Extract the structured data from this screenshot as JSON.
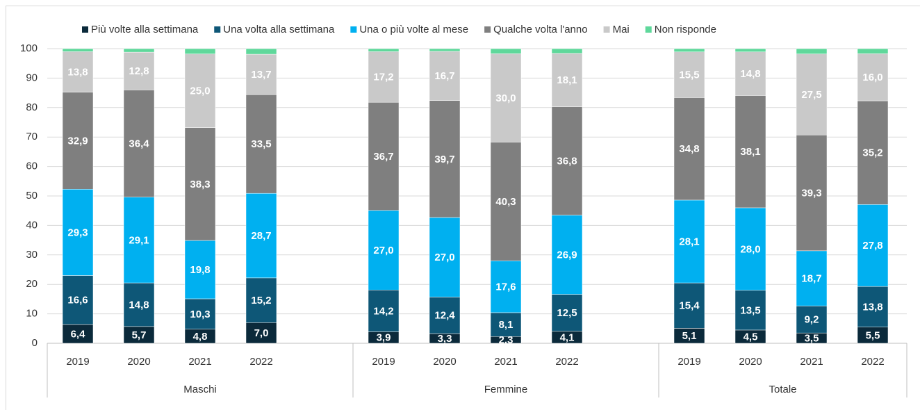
{
  "chart_data": {
    "type": "stacked_bar",
    "groups": [
      "Maschi",
      "Femmine",
      "Totale"
    ],
    "categories": [
      "2019",
      "2020",
      "2021",
      "2022",
      "2019",
      "2020",
      "2021",
      "2022",
      "2019",
      "2020",
      "2021",
      "2022"
    ],
    "series": [
      {
        "name": "Più volte alla settimana",
        "color": "#0b2a3b",
        "values": [
          6.4,
          5.7,
          4.8,
          7.0,
          3.9,
          3.3,
          2.3,
          4.1,
          5.1,
          4.5,
          3.5,
          5.5
        ],
        "value_labels": [
          "6,4",
          "5,7",
          "4,8",
          "7,0",
          "3,9",
          "3,3",
          "2,3",
          "4,1",
          "5,1",
          "4,5",
          "3,5",
          "5,5"
        ]
      },
      {
        "name": "Una volta alla settimana",
        "color": "#0e5777",
        "values": [
          16.6,
          14.8,
          10.3,
          15.2,
          14.2,
          12.4,
          8.1,
          12.5,
          15.4,
          13.5,
          9.2,
          13.8
        ],
        "value_labels": [
          "16,6",
          "14,8",
          "10,3",
          "15,2",
          "14,2",
          "12,4",
          "8,1",
          "12,5",
          "15,4",
          "13,5",
          "9,2",
          "13,8"
        ]
      },
      {
        "name": "Una o più volte al mese",
        "color": "#00b0f0",
        "values": [
          29.3,
          29.1,
          19.8,
          28.7,
          27.0,
          27.0,
          17.6,
          26.9,
          28.1,
          28.0,
          18.7,
          27.8
        ],
        "value_labels": [
          "29,3",
          "29,1",
          "19,8",
          "28,7",
          "27,0",
          "27,0",
          "17,6",
          "26,9",
          "28,1",
          "28,0",
          "18,7",
          "27,8"
        ]
      },
      {
        "name": "Qualche volta l'anno",
        "color": "#7f7f7f",
        "values": [
          32.9,
          36.4,
          38.3,
          33.5,
          36.7,
          39.7,
          40.3,
          36.8,
          34.8,
          38.1,
          39.3,
          35.2
        ],
        "value_labels": [
          "32,9",
          "36,4",
          "38,3",
          "33,5",
          "36,7",
          "39,7",
          "40,3",
          "36,8",
          "34,8",
          "38,1",
          "39,3",
          "35,2"
        ]
      },
      {
        "name": "Mai",
        "color": "#c9c9c9",
        "values": [
          13.8,
          12.8,
          25.0,
          13.7,
          17.2,
          16.7,
          30.0,
          18.1,
          15.5,
          14.8,
          27.5,
          16.0
        ],
        "value_labels": [
          "13,8",
          "12,8",
          "25,0",
          "13,7",
          "17,2",
          "16,7",
          "30,0",
          "18,1",
          "15,5",
          "14,8",
          "27,5",
          "16,0"
        ]
      },
      {
        "name": "Non risponde",
        "color": "#5fd89b",
        "values": [
          1.0,
          1.2,
          1.8,
          1.9,
          1.0,
          0.9,
          1.7,
          1.6,
          1.1,
          1.1,
          1.8,
          1.7
        ]
      }
    ],
    "ylim": [
      0,
      100
    ],
    "yticks": [
      0,
      10,
      20,
      30,
      40,
      50,
      60,
      70,
      80,
      90,
      100
    ],
    "grid": true,
    "legend": "top"
  }
}
